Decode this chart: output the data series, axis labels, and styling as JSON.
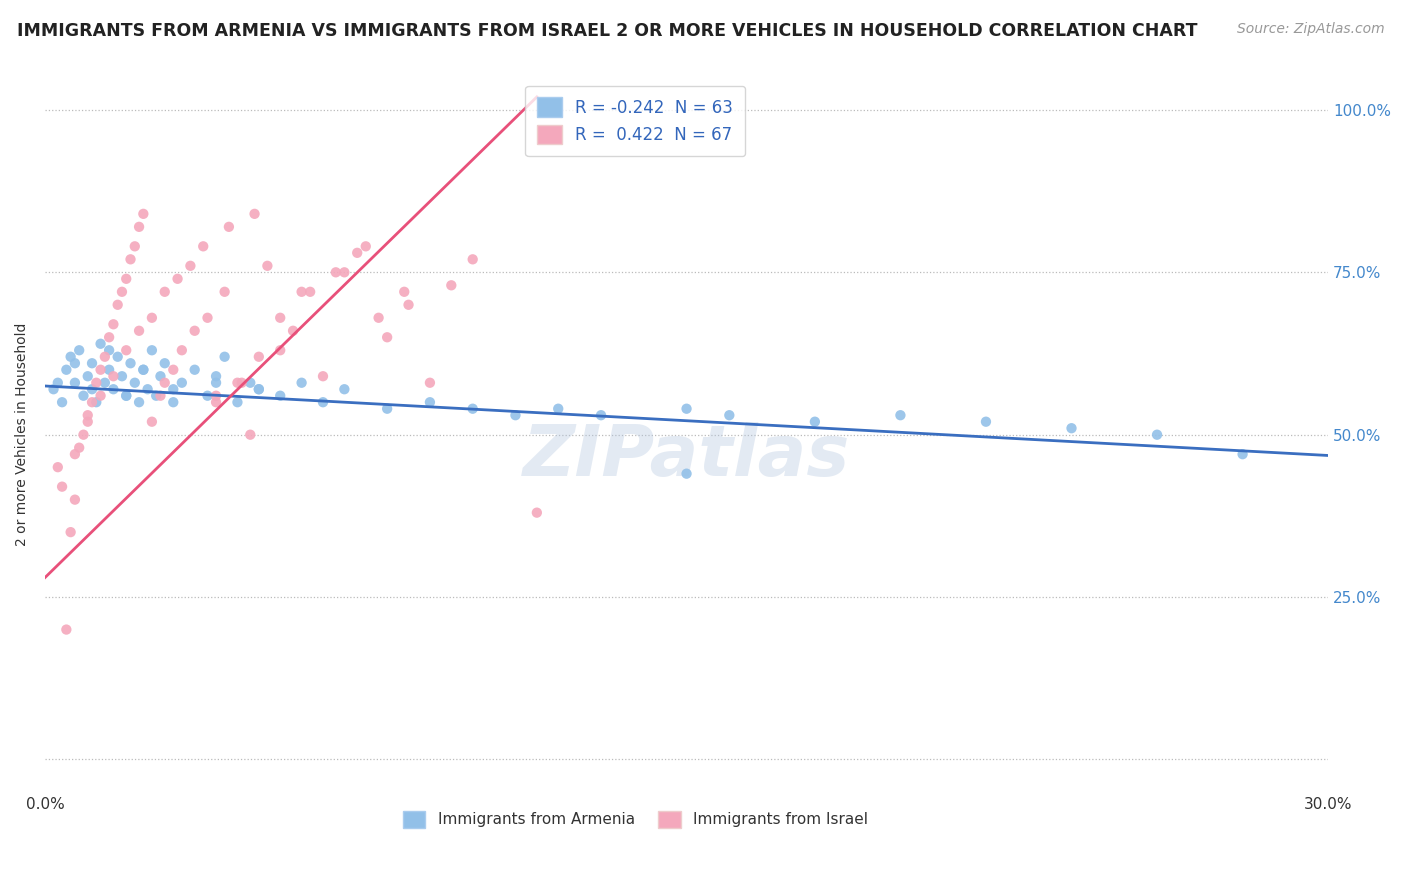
{
  "title": "IMMIGRANTS FROM ARMENIA VS IMMIGRANTS FROM ISRAEL 2 OR MORE VEHICLES IN HOUSEHOLD CORRELATION CHART",
  "source": "Source: ZipAtlas.com",
  "ylabel": "2 or more Vehicles in Household",
  "xmin": 0.0,
  "xmax": 0.3,
  "ymin": 0.0,
  "ymax": 1.05,
  "yticks": [
    0.0,
    0.25,
    0.5,
    0.75,
    1.0
  ],
  "ytick_labels": [
    "",
    "25.0%",
    "50.0%",
    "75.0%",
    "100.0%"
  ],
  "xticks": [
    0.0,
    0.05,
    0.1,
    0.15,
    0.2,
    0.25,
    0.3
  ],
  "xtick_labels": [
    "0.0%",
    "",
    "",
    "",
    "",
    "",
    "30.0%"
  ],
  "armenia_color": "#92C0E8",
  "israel_color": "#F4A8BC",
  "armenia_line_color": "#3A6EC0",
  "israel_line_color": "#E8507A",
  "r_armenia": -0.242,
  "n_armenia": 63,
  "r_israel": 0.422,
  "n_israel": 67,
  "legend_label_armenia": "Immigrants from Armenia",
  "legend_label_israel": "Immigrants from Israel",
  "title_fontsize": 12.5,
  "source_fontsize": 10,
  "label_fontsize": 10,
  "legend_fontsize": 11,
  "watermark": "ZIPatlas",
  "armenia_x": [
    0.002,
    0.004,
    0.005,
    0.006,
    0.007,
    0.008,
    0.009,
    0.01,
    0.011,
    0.012,
    0.013,
    0.014,
    0.015,
    0.016,
    0.017,
    0.018,
    0.019,
    0.02,
    0.021,
    0.022,
    0.023,
    0.024,
    0.025,
    0.026,
    0.027,
    0.028,
    0.03,
    0.032,
    0.035,
    0.038,
    0.04,
    0.042,
    0.045,
    0.048,
    0.05,
    0.055,
    0.06,
    0.065,
    0.07,
    0.08,
    0.09,
    0.1,
    0.11,
    0.12,
    0.13,
    0.15,
    0.16,
    0.18,
    0.2,
    0.22,
    0.24,
    0.26,
    0.28,
    0.003,
    0.007,
    0.011,
    0.015,
    0.019,
    0.023,
    0.03,
    0.04,
    0.05,
    0.15
  ],
  "armenia_y": [
    0.57,
    0.55,
    0.6,
    0.62,
    0.58,
    0.63,
    0.56,
    0.59,
    0.61,
    0.55,
    0.64,
    0.58,
    0.6,
    0.57,
    0.62,
    0.59,
    0.56,
    0.61,
    0.58,
    0.55,
    0.6,
    0.57,
    0.63,
    0.56,
    0.59,
    0.61,
    0.57,
    0.58,
    0.6,
    0.56,
    0.59,
    0.62,
    0.55,
    0.58,
    0.57,
    0.56,
    0.58,
    0.55,
    0.57,
    0.54,
    0.55,
    0.54,
    0.53,
    0.54,
    0.53,
    0.54,
    0.53,
    0.52,
    0.53,
    0.52,
    0.51,
    0.5,
    0.47,
    0.58,
    0.61,
    0.57,
    0.63,
    0.56,
    0.6,
    0.55,
    0.58,
    0.57,
    0.44
  ],
  "israel_x": [
    0.003,
    0.005,
    0.006,
    0.007,
    0.008,
    0.009,
    0.01,
    0.011,
    0.012,
    0.013,
    0.014,
    0.015,
    0.016,
    0.017,
    0.018,
    0.019,
    0.02,
    0.021,
    0.022,
    0.023,
    0.025,
    0.027,
    0.028,
    0.03,
    0.032,
    0.035,
    0.038,
    0.04,
    0.042,
    0.045,
    0.048,
    0.05,
    0.055,
    0.06,
    0.065,
    0.07,
    0.075,
    0.08,
    0.085,
    0.09,
    0.095,
    0.1,
    0.004,
    0.007,
    0.01,
    0.013,
    0.016,
    0.019,
    0.022,
    0.025,
    0.028,
    0.031,
    0.034,
    0.037,
    0.04,
    0.043,
    0.046,
    0.049,
    0.052,
    0.055,
    0.058,
    0.062,
    0.068,
    0.073,
    0.078,
    0.084,
    0.115
  ],
  "israel_y": [
    0.45,
    0.2,
    0.35,
    0.4,
    0.48,
    0.5,
    0.52,
    0.55,
    0.58,
    0.6,
    0.62,
    0.65,
    0.67,
    0.7,
    0.72,
    0.74,
    0.77,
    0.79,
    0.82,
    0.84,
    0.52,
    0.56,
    0.58,
    0.6,
    0.63,
    0.66,
    0.68,
    0.55,
    0.72,
    0.58,
    0.5,
    0.62,
    0.68,
    0.72,
    0.59,
    0.75,
    0.79,
    0.65,
    0.7,
    0.58,
    0.73,
    0.77,
    0.42,
    0.47,
    0.53,
    0.56,
    0.59,
    0.63,
    0.66,
    0.68,
    0.72,
    0.74,
    0.76,
    0.79,
    0.56,
    0.82,
    0.58,
    0.84,
    0.76,
    0.63,
    0.66,
    0.72,
    0.75,
    0.78,
    0.68,
    0.72,
    0.38
  ],
  "armenia_line_x": [
    0.0,
    0.3
  ],
  "armenia_line_y": [
    0.575,
    0.468
  ],
  "israel_line_x": [
    0.0,
    0.115
  ],
  "israel_line_y": [
    0.28,
    1.02
  ]
}
